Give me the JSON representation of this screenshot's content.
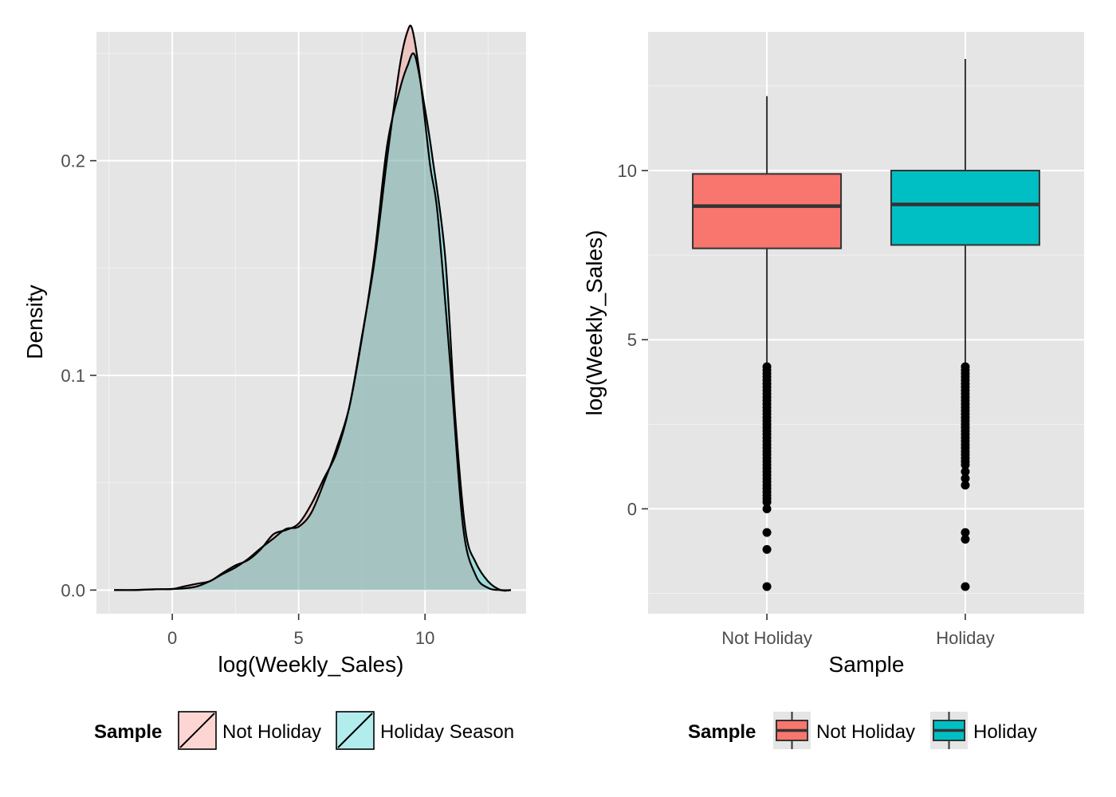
{
  "chart_data": [
    {
      "type": "area",
      "subtype": "density",
      "title": "",
      "xlabel": "log(Weekly_Sales)",
      "ylabel": "Density",
      "xlim": [
        -3,
        14
      ],
      "ylim": [
        -0.011,
        0.26
      ],
      "x_ticks": [
        0,
        5,
        10
      ],
      "x_tick_labels": [
        "0",
        "5",
        "10"
      ],
      "y_ticks": [
        0.0,
        0.1,
        0.2
      ],
      "y_tick_labels": [
        "0.0",
        "0.1",
        "0.2"
      ],
      "grid": true,
      "legend": {
        "title": "Sample",
        "position": "bottom"
      },
      "series": [
        {
          "name": "Not Holiday",
          "fill": "#f8766d",
          "fill_opacity": 0.3,
          "points": [
            [
              -2.3,
              0.0
            ],
            [
              -1.5,
              0.0
            ],
            [
              -1.0,
              0.0003
            ],
            [
              -0.5,
              0.0004
            ],
            [
              0.0,
              0.0005
            ],
            [
              0.5,
              0.0018
            ],
            [
              1.0,
              0.003
            ],
            [
              1.5,
              0.0042
            ],
            [
              2.0,
              0.008
            ],
            [
              2.5,
              0.0115
            ],
            [
              3.0,
              0.014
            ],
            [
              3.5,
              0.019
            ],
            [
              4.0,
              0.026
            ],
            [
              4.5,
              0.028
            ],
            [
              5.0,
              0.031
            ],
            [
              5.5,
              0.04
            ],
            [
              6.0,
              0.052
            ],
            [
              6.5,
              0.064
            ],
            [
              7.0,
              0.085
            ],
            [
              7.5,
              0.118
            ],
            [
              8.0,
              0.153
            ],
            [
              8.5,
              0.201
            ],
            [
              9.0,
              0.244
            ],
            [
              9.3,
              0.26
            ],
            [
              9.5,
              0.261
            ],
            [
              9.8,
              0.239
            ],
            [
              10.2,
              0.198
            ],
            [
              10.5,
              0.175
            ],
            [
              11.0,
              0.105
            ],
            [
              11.5,
              0.03
            ],
            [
              12.0,
              0.007
            ],
            [
              12.5,
              0.001
            ],
            [
              13.0,
              0.0
            ],
            [
              13.4,
              0.0
            ]
          ]
        },
        {
          "name": "Holiday Season",
          "fill": "#00bfc4",
          "fill_opacity": 0.3,
          "points": [
            [
              -2.3,
              0.0
            ],
            [
              -1.5,
              0.0
            ],
            [
              -1.0,
              0.0002
            ],
            [
              -0.5,
              0.0004
            ],
            [
              0.0,
              0.0005
            ],
            [
              0.5,
              0.0008
            ],
            [
              1.0,
              0.0018
            ],
            [
              1.5,
              0.0042
            ],
            [
              2.0,
              0.0075
            ],
            [
              2.5,
              0.0105
            ],
            [
              3.0,
              0.0145
            ],
            [
              3.5,
              0.0195
            ],
            [
              4.0,
              0.024
            ],
            [
              4.5,
              0.0285
            ],
            [
              5.0,
              0.0295
            ],
            [
              5.5,
              0.036
            ],
            [
              6.0,
              0.05
            ],
            [
              6.5,
              0.066
            ],
            [
              7.0,
              0.085
            ],
            [
              7.5,
              0.117
            ],
            [
              8.0,
              0.156
            ],
            [
              8.5,
              0.207
            ],
            [
              9.0,
              0.233
            ],
            [
              9.3,
              0.244
            ],
            [
              9.6,
              0.249
            ],
            [
              10.0,
              0.224
            ],
            [
              10.3,
              0.201
            ],
            [
              10.8,
              0.155
            ],
            [
              11.2,
              0.08
            ],
            [
              11.6,
              0.028
            ],
            [
              12.0,
              0.013
            ],
            [
              12.5,
              0.004
            ],
            [
              13.0,
              0.0
            ],
            [
              13.4,
              0.0
            ]
          ]
        }
      ]
    },
    {
      "type": "box",
      "title": "",
      "xlabel": "Sample",
      "ylabel": "log(Weekly_Sales)",
      "categories": [
        "Not Holiday",
        "Holiday"
      ],
      "ylim": [
        -3.1,
        14.1
      ],
      "y_ticks": [
        0,
        5,
        10
      ],
      "y_tick_labels": [
        "0",
        "5",
        "10"
      ],
      "grid": true,
      "legend": {
        "title": "Sample",
        "position": "bottom"
      },
      "series": [
        {
          "name": "Not Holiday",
          "fill": "#f8766d",
          "whisker_low": 4.25,
          "q1": 7.7,
          "median": 8.95,
          "q3": 9.9,
          "whisker_high": 12.2,
          "outliers": [
            4.2,
            4.1,
            4.0,
            3.9,
            3.8,
            3.7,
            3.6,
            3.5,
            3.4,
            3.3,
            3.2,
            3.1,
            3.0,
            2.9,
            2.8,
            2.7,
            2.6,
            2.5,
            2.4,
            2.3,
            2.2,
            2.1,
            2.0,
            1.9,
            1.8,
            1.7,
            1.6,
            1.5,
            1.4,
            1.3,
            1.2,
            1.1,
            1.0,
            0.9,
            0.8,
            0.7,
            0.6,
            0.5,
            0.4,
            0.3,
            0.2,
            0.0,
            -0.7,
            -1.2,
            -2.3
          ]
        },
        {
          "name": "Holiday",
          "fill": "#00bfc4",
          "whisker_low": 4.25,
          "q1": 7.8,
          "median": 9.0,
          "q3": 10.0,
          "whisker_high": 13.3,
          "outliers": [
            4.2,
            4.1,
            4.0,
            3.9,
            3.8,
            3.7,
            3.6,
            3.5,
            3.4,
            3.3,
            3.2,
            3.1,
            3.0,
            2.9,
            2.8,
            2.7,
            2.6,
            2.5,
            2.4,
            2.3,
            2.2,
            2.1,
            2.0,
            1.9,
            1.8,
            1.7,
            1.6,
            1.5,
            1.4,
            1.3,
            1.1,
            0.9,
            0.7,
            -0.7,
            -0.9,
            -2.3
          ]
        }
      ]
    }
  ],
  "colors": {
    "panel_bg": "#e5e5e5",
    "grid_major": "#ffffff",
    "grid_minor": "#f2f2f2",
    "not_holiday": "#f8766d",
    "holiday": "#00bfc4"
  }
}
